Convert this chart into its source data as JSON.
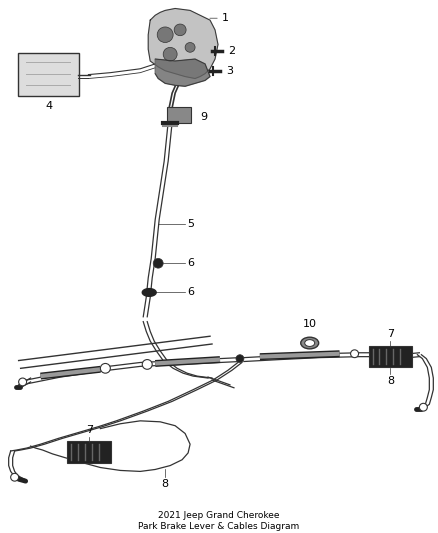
{
  "bg_color": "#ffffff",
  "line_color": "#333333",
  "label_color": "#000000",
  "dark_color": "#222222",
  "mid_color": "#888888",
  "light_color": "#cccccc",
  "title": "2021 Jeep Grand Cherokee\nPark Brake Lever & Cables Diagram",
  "figsize": [
    4.38,
    5.33
  ],
  "dpi": 100
}
